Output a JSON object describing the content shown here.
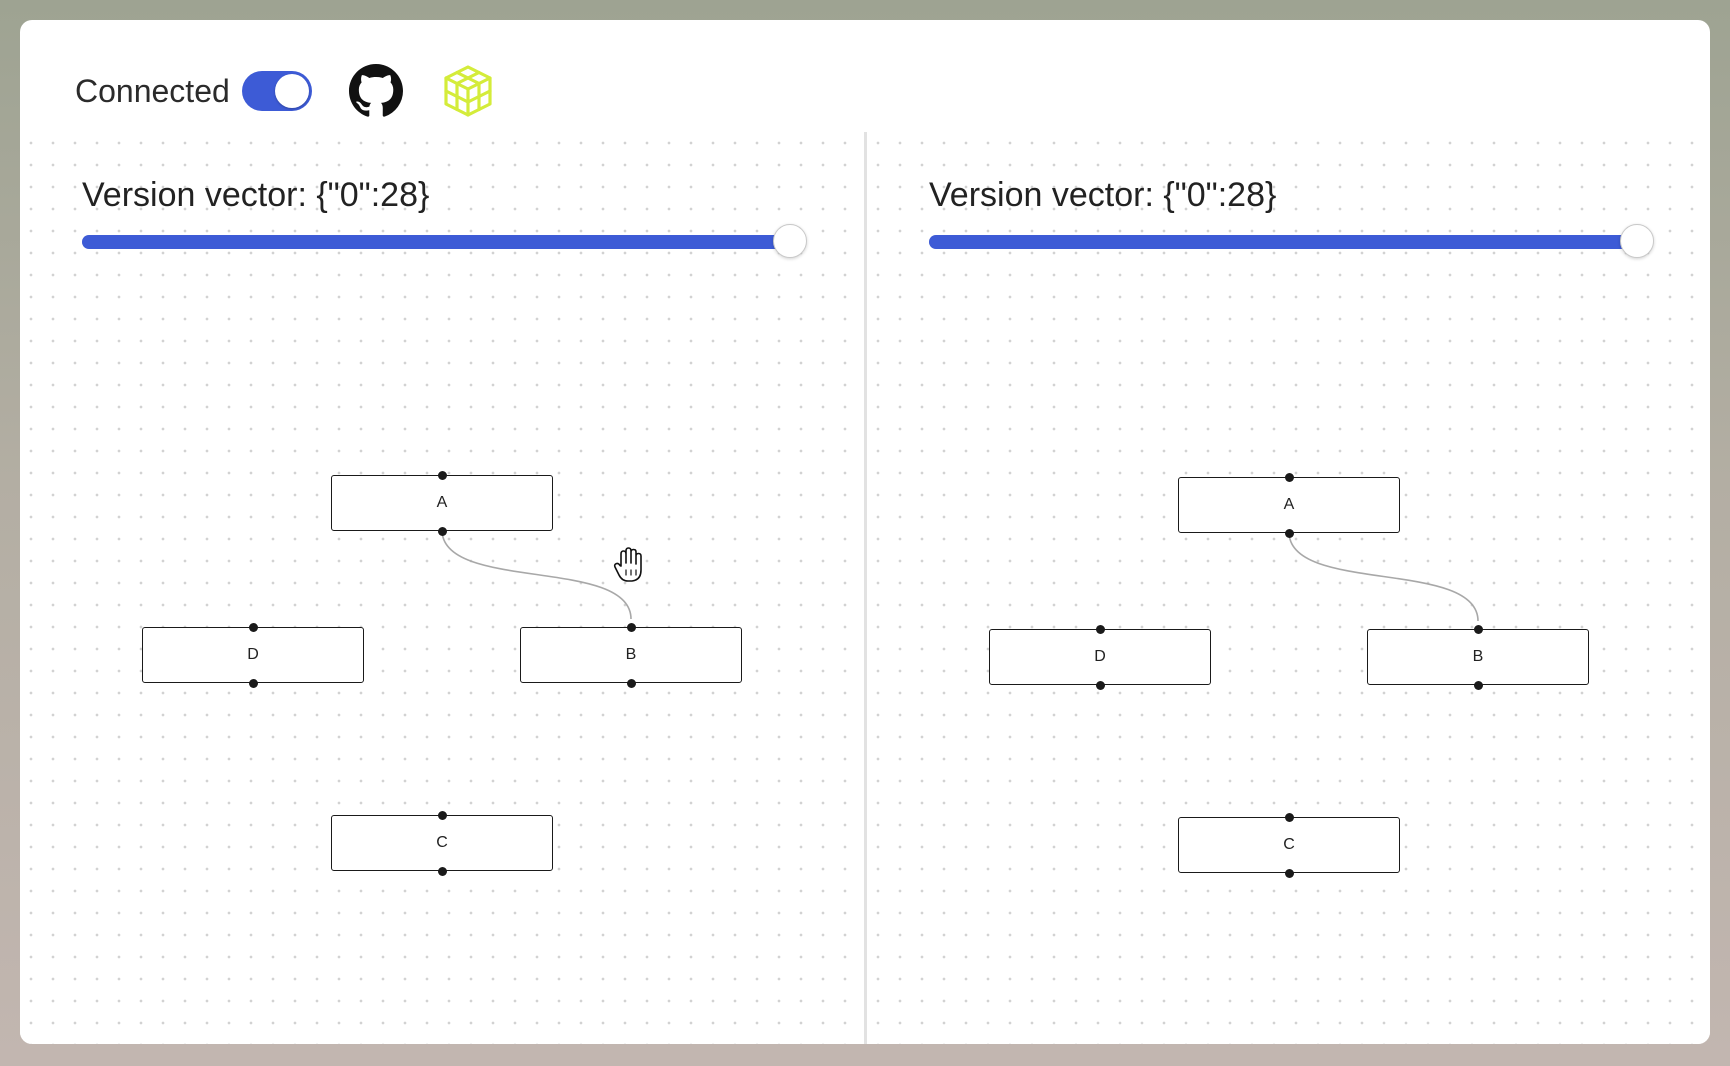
{
  "header": {
    "connected_label": "Connected",
    "connected": true,
    "github_icon": "github-icon",
    "app_icon": "cube-icon"
  },
  "colors": {
    "accent": "#3d5bd6",
    "cube_icon": "#d4ec3a",
    "node_border": "#1a1a1a",
    "edge": "#a8a8a8"
  },
  "panes": [
    {
      "version_label": "Version vector: {\"0\":28}",
      "slider_value_fraction": 1.0,
      "nodes": [
        {
          "id": "A",
          "label": "A"
        },
        {
          "id": "D",
          "label": "D"
        },
        {
          "id": "B",
          "label": "B"
        },
        {
          "id": "C",
          "label": "C"
        }
      ],
      "edges": [
        {
          "source": "A",
          "target": "B"
        }
      ],
      "cursor_icon": "grab-hand-icon"
    },
    {
      "version_label": "Version vector: {\"0\":28}",
      "slider_value_fraction": 1.0,
      "nodes": [
        {
          "id": "A",
          "label": "A"
        },
        {
          "id": "D",
          "label": "D"
        },
        {
          "id": "B",
          "label": "B"
        },
        {
          "id": "C",
          "label": "C"
        }
      ],
      "edges": [
        {
          "source": "A",
          "target": "B"
        }
      ]
    }
  ]
}
